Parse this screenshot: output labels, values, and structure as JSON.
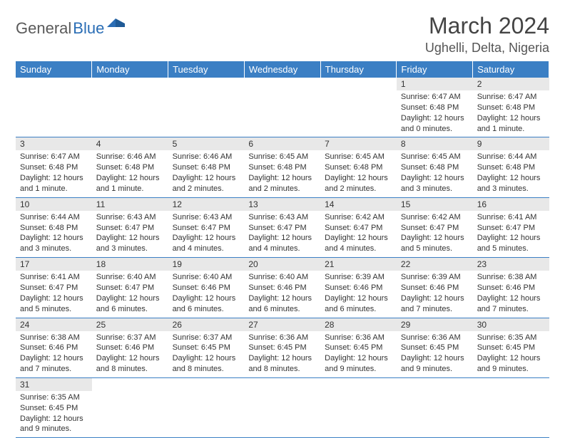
{
  "logo": {
    "text1": "General",
    "text2": "Blue"
  },
  "title": "March 2024",
  "location": "Ughelli, Delta, Nigeria",
  "colors": {
    "header_bg": "#3b7fc4",
    "header_text": "#ffffff",
    "daynum_bg": "#e8e8e8",
    "border": "#3b7fc4",
    "logo_blue": "#2a6db5",
    "logo_gray": "#5a5a5a"
  },
  "day_headers": [
    "Sunday",
    "Monday",
    "Tuesday",
    "Wednesday",
    "Thursday",
    "Friday",
    "Saturday"
  ],
  "weeks": [
    [
      null,
      null,
      null,
      null,
      null,
      {
        "n": "1",
        "sr": "Sunrise: 6:47 AM",
        "ss": "Sunset: 6:48 PM",
        "dl": "Daylight: 12 hours and 0 minutes."
      },
      {
        "n": "2",
        "sr": "Sunrise: 6:47 AM",
        "ss": "Sunset: 6:48 PM",
        "dl": "Daylight: 12 hours and 1 minute."
      }
    ],
    [
      {
        "n": "3",
        "sr": "Sunrise: 6:47 AM",
        "ss": "Sunset: 6:48 PM",
        "dl": "Daylight: 12 hours and 1 minute."
      },
      {
        "n": "4",
        "sr": "Sunrise: 6:46 AM",
        "ss": "Sunset: 6:48 PM",
        "dl": "Daylight: 12 hours and 1 minute."
      },
      {
        "n": "5",
        "sr": "Sunrise: 6:46 AM",
        "ss": "Sunset: 6:48 PM",
        "dl": "Daylight: 12 hours and 2 minutes."
      },
      {
        "n": "6",
        "sr": "Sunrise: 6:45 AM",
        "ss": "Sunset: 6:48 PM",
        "dl": "Daylight: 12 hours and 2 minutes."
      },
      {
        "n": "7",
        "sr": "Sunrise: 6:45 AM",
        "ss": "Sunset: 6:48 PM",
        "dl": "Daylight: 12 hours and 2 minutes."
      },
      {
        "n": "8",
        "sr": "Sunrise: 6:45 AM",
        "ss": "Sunset: 6:48 PM",
        "dl": "Daylight: 12 hours and 3 minutes."
      },
      {
        "n": "9",
        "sr": "Sunrise: 6:44 AM",
        "ss": "Sunset: 6:48 PM",
        "dl": "Daylight: 12 hours and 3 minutes."
      }
    ],
    [
      {
        "n": "10",
        "sr": "Sunrise: 6:44 AM",
        "ss": "Sunset: 6:48 PM",
        "dl": "Daylight: 12 hours and 3 minutes."
      },
      {
        "n": "11",
        "sr": "Sunrise: 6:43 AM",
        "ss": "Sunset: 6:47 PM",
        "dl": "Daylight: 12 hours and 3 minutes."
      },
      {
        "n": "12",
        "sr": "Sunrise: 6:43 AM",
        "ss": "Sunset: 6:47 PM",
        "dl": "Daylight: 12 hours and 4 minutes."
      },
      {
        "n": "13",
        "sr": "Sunrise: 6:43 AM",
        "ss": "Sunset: 6:47 PM",
        "dl": "Daylight: 12 hours and 4 minutes."
      },
      {
        "n": "14",
        "sr": "Sunrise: 6:42 AM",
        "ss": "Sunset: 6:47 PM",
        "dl": "Daylight: 12 hours and 4 minutes."
      },
      {
        "n": "15",
        "sr": "Sunrise: 6:42 AM",
        "ss": "Sunset: 6:47 PM",
        "dl": "Daylight: 12 hours and 5 minutes."
      },
      {
        "n": "16",
        "sr": "Sunrise: 6:41 AM",
        "ss": "Sunset: 6:47 PM",
        "dl": "Daylight: 12 hours and 5 minutes."
      }
    ],
    [
      {
        "n": "17",
        "sr": "Sunrise: 6:41 AM",
        "ss": "Sunset: 6:47 PM",
        "dl": "Daylight: 12 hours and 5 minutes."
      },
      {
        "n": "18",
        "sr": "Sunrise: 6:40 AM",
        "ss": "Sunset: 6:47 PM",
        "dl": "Daylight: 12 hours and 6 minutes."
      },
      {
        "n": "19",
        "sr": "Sunrise: 6:40 AM",
        "ss": "Sunset: 6:46 PM",
        "dl": "Daylight: 12 hours and 6 minutes."
      },
      {
        "n": "20",
        "sr": "Sunrise: 6:40 AM",
        "ss": "Sunset: 6:46 PM",
        "dl": "Daylight: 12 hours and 6 minutes."
      },
      {
        "n": "21",
        "sr": "Sunrise: 6:39 AM",
        "ss": "Sunset: 6:46 PM",
        "dl": "Daylight: 12 hours and 6 minutes."
      },
      {
        "n": "22",
        "sr": "Sunrise: 6:39 AM",
        "ss": "Sunset: 6:46 PM",
        "dl": "Daylight: 12 hours and 7 minutes."
      },
      {
        "n": "23",
        "sr": "Sunrise: 6:38 AM",
        "ss": "Sunset: 6:46 PM",
        "dl": "Daylight: 12 hours and 7 minutes."
      }
    ],
    [
      {
        "n": "24",
        "sr": "Sunrise: 6:38 AM",
        "ss": "Sunset: 6:46 PM",
        "dl": "Daylight: 12 hours and 7 minutes."
      },
      {
        "n": "25",
        "sr": "Sunrise: 6:37 AM",
        "ss": "Sunset: 6:46 PM",
        "dl": "Daylight: 12 hours and 8 minutes."
      },
      {
        "n": "26",
        "sr": "Sunrise: 6:37 AM",
        "ss": "Sunset: 6:45 PM",
        "dl": "Daylight: 12 hours and 8 minutes."
      },
      {
        "n": "27",
        "sr": "Sunrise: 6:36 AM",
        "ss": "Sunset: 6:45 PM",
        "dl": "Daylight: 12 hours and 8 minutes."
      },
      {
        "n": "28",
        "sr": "Sunrise: 6:36 AM",
        "ss": "Sunset: 6:45 PM",
        "dl": "Daylight: 12 hours and 9 minutes."
      },
      {
        "n": "29",
        "sr": "Sunrise: 6:36 AM",
        "ss": "Sunset: 6:45 PM",
        "dl": "Daylight: 12 hours and 9 minutes."
      },
      {
        "n": "30",
        "sr": "Sunrise: 6:35 AM",
        "ss": "Sunset: 6:45 PM",
        "dl": "Daylight: 12 hours and 9 minutes."
      }
    ],
    [
      {
        "n": "31",
        "sr": "Sunrise: 6:35 AM",
        "ss": "Sunset: 6:45 PM",
        "dl": "Daylight: 12 hours and 9 minutes."
      },
      null,
      null,
      null,
      null,
      null,
      null
    ]
  ]
}
